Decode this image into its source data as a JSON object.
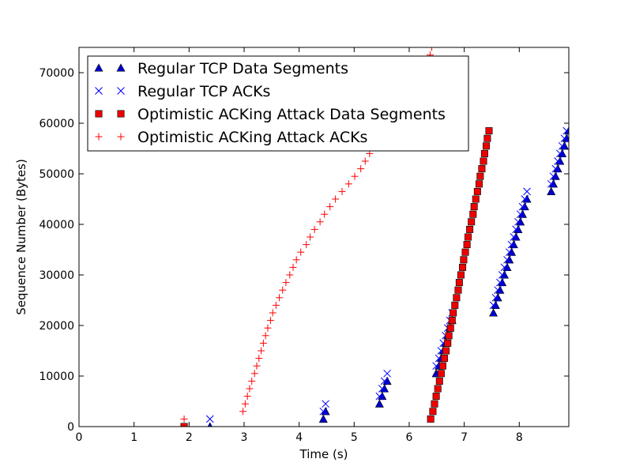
{
  "chart_data": {
    "type": "scatter",
    "xlabel": "Time (s)",
    "ylabel": "Sequence Number (Bytes)",
    "xlim": [
      0,
      8.9
    ],
    "ylim": [
      0,
      75000
    ],
    "x_ticks": [
      "0",
      "1",
      "2",
      "3",
      "4",
      "5",
      "6",
      "7",
      "8"
    ],
    "y_ticks": [
      "0",
      "10000",
      "20000",
      "30000",
      "40000",
      "50000",
      "60000",
      "70000"
    ],
    "grid": false,
    "legend_position": "top-left",
    "series": [
      {
        "name": "Regular TCP Data Segments",
        "marker": "triangle",
        "color": "#0000cc",
        "points": [
          [
            2.38,
            0
          ],
          [
            4.44,
            1500
          ],
          [
            4.48,
            3000
          ],
          [
            5.46,
            4500
          ],
          [
            5.51,
            6000
          ],
          [
            5.55,
            7500
          ],
          [
            5.6,
            9000
          ],
          [
            6.49,
            10500
          ],
          [
            6.54,
            12000
          ],
          [
            6.58,
            13500
          ],
          [
            6.62,
            15000
          ],
          [
            6.66,
            16500
          ],
          [
            6.7,
            18000
          ],
          [
            6.74,
            19500
          ],
          [
            6.78,
            21000
          ],
          [
            7.53,
            22500
          ],
          [
            7.57,
            24000
          ],
          [
            7.61,
            25500
          ],
          [
            7.65,
            27000
          ],
          [
            7.69,
            28500
          ],
          [
            7.73,
            30000
          ],
          [
            7.78,
            31500
          ],
          [
            7.82,
            33000
          ],
          [
            7.86,
            34500
          ],
          [
            7.9,
            36000
          ],
          [
            7.94,
            37500
          ],
          [
            7.98,
            39000
          ],
          [
            8.02,
            40500
          ],
          [
            8.06,
            42000
          ],
          [
            8.1,
            43500
          ],
          [
            8.14,
            45000
          ],
          [
            8.58,
            46500
          ],
          [
            8.62,
            48000
          ],
          [
            8.66,
            49500
          ],
          [
            8.7,
            51000
          ],
          [
            8.74,
            52500
          ],
          [
            8.78,
            54000
          ],
          [
            8.82,
            55500
          ],
          [
            8.86,
            57000
          ],
          [
            8.9,
            58500
          ]
        ]
      },
      {
        "name": "Regular TCP ACKs",
        "marker": "x",
        "color": "#0000ff",
        "points": [
          [
            2.38,
            1500
          ],
          [
            4.44,
            3000
          ],
          [
            4.48,
            4500
          ],
          [
            5.46,
            6000
          ],
          [
            5.51,
            7500
          ],
          [
            5.55,
            9000
          ],
          [
            5.6,
            10500
          ],
          [
            6.49,
            12000
          ],
          [
            6.54,
            13500
          ],
          [
            6.58,
            15000
          ],
          [
            6.62,
            16500
          ],
          [
            6.66,
            18000
          ],
          [
            6.7,
            19500
          ],
          [
            6.74,
            21000
          ],
          [
            6.78,
            22500
          ],
          [
            7.53,
            24000
          ],
          [
            7.57,
            25500
          ],
          [
            7.61,
            27000
          ],
          [
            7.65,
            28500
          ],
          [
            7.69,
            30000
          ],
          [
            7.73,
            31500
          ],
          [
            7.78,
            33000
          ],
          [
            7.82,
            34500
          ],
          [
            7.86,
            36000
          ],
          [
            7.9,
            37500
          ],
          [
            7.94,
            39000
          ],
          [
            7.98,
            40500
          ],
          [
            8.02,
            42000
          ],
          [
            8.06,
            43500
          ],
          [
            8.1,
            45000
          ],
          [
            8.14,
            46500
          ],
          [
            8.58,
            48000
          ],
          [
            8.62,
            49500
          ],
          [
            8.66,
            51000
          ],
          [
            8.7,
            52500
          ],
          [
            8.74,
            54000
          ],
          [
            8.78,
            55500
          ],
          [
            8.82,
            57000
          ],
          [
            8.86,
            58500
          ]
        ]
      },
      {
        "name": "Optimistic ACKing Attack Data Segments",
        "marker": "square",
        "color": "#ee0000",
        "points": [
          [
            1.91,
            0
          ],
          [
            6.39,
            1500
          ],
          [
            6.43,
            3000
          ],
          [
            6.46,
            4500
          ],
          [
            6.49,
            6000
          ],
          [
            6.52,
            7500
          ],
          [
            6.55,
            9000
          ],
          [
            6.58,
            10500
          ],
          [
            6.61,
            12000
          ],
          [
            6.64,
            13500
          ],
          [
            6.67,
            15000
          ],
          [
            6.7,
            16500
          ],
          [
            6.72,
            18000
          ],
          [
            6.75,
            19500
          ],
          [
            6.78,
            21000
          ],
          [
            6.8,
            22500
          ],
          [
            6.83,
            24000
          ],
          [
            6.86,
            25500
          ],
          [
            6.89,
            27000
          ],
          [
            6.91,
            28500
          ],
          [
            6.94,
            30000
          ],
          [
            6.97,
            31500
          ],
          [
            6.99,
            33000
          ],
          [
            7.02,
            34500
          ],
          [
            7.05,
            36000
          ],
          [
            7.07,
            37500
          ],
          [
            7.1,
            39000
          ],
          [
            7.13,
            40500
          ],
          [
            7.16,
            42000
          ],
          [
            7.18,
            43500
          ],
          [
            7.21,
            45000
          ],
          [
            7.24,
            46500
          ],
          [
            7.27,
            48000
          ],
          [
            7.29,
            49500
          ],
          [
            7.32,
            51000
          ],
          [
            7.35,
            52500
          ],
          [
            7.37,
            54000
          ],
          [
            7.4,
            55500
          ],
          [
            7.42,
            57000
          ],
          [
            7.45,
            58500
          ]
        ]
      },
      {
        "name": "Optimistic ACKing Attack ACKs",
        "marker": "plus",
        "color": "#ff0000",
        "points": [
          [
            1.91,
            1500
          ],
          [
            2.98,
            3000
          ],
          [
            3.02,
            4500
          ],
          [
            3.06,
            6000
          ],
          [
            3.1,
            7500
          ],
          [
            3.14,
            9000
          ],
          [
            3.19,
            10500
          ],
          [
            3.23,
            12000
          ],
          [
            3.27,
            13500
          ],
          [
            3.31,
            15000
          ],
          [
            3.35,
            16500
          ],
          [
            3.39,
            18000
          ],
          [
            3.43,
            19500
          ],
          [
            3.48,
            21000
          ],
          [
            3.52,
            22500
          ],
          [
            3.58,
            24000
          ],
          [
            3.64,
            25500
          ],
          [
            3.7,
            27000
          ],
          [
            3.76,
            28500
          ],
          [
            3.83,
            30000
          ],
          [
            3.89,
            31500
          ],
          [
            3.95,
            33000
          ],
          [
            4.03,
            34500
          ],
          [
            4.13,
            36000
          ],
          [
            4.2,
            37500
          ],
          [
            4.28,
            39000
          ],
          [
            4.38,
            40500
          ],
          [
            4.46,
            42000
          ],
          [
            4.56,
            43500
          ],
          [
            4.66,
            45000
          ],
          [
            4.78,
            46500
          ],
          [
            4.9,
            48000
          ],
          [
            5.01,
            49500
          ],
          [
            5.12,
            51000
          ],
          [
            5.2,
            52500
          ],
          [
            5.28,
            54000
          ],
          [
            5.4,
            55500
          ],
          [
            5.5,
            57000
          ],
          [
            5.62,
            58500
          ],
          [
            5.72,
            60000
          ],
          [
            5.82,
            61500
          ],
          [
            5.92,
            63000
          ],
          [
            6.02,
            64500
          ],
          [
            6.1,
            66000
          ],
          [
            6.18,
            67500
          ],
          [
            6.25,
            69000
          ],
          [
            6.31,
            70500
          ],
          [
            6.35,
            72000
          ],
          [
            6.38,
            73500
          ],
          [
            6.41,
            75000
          ]
        ]
      }
    ]
  }
}
